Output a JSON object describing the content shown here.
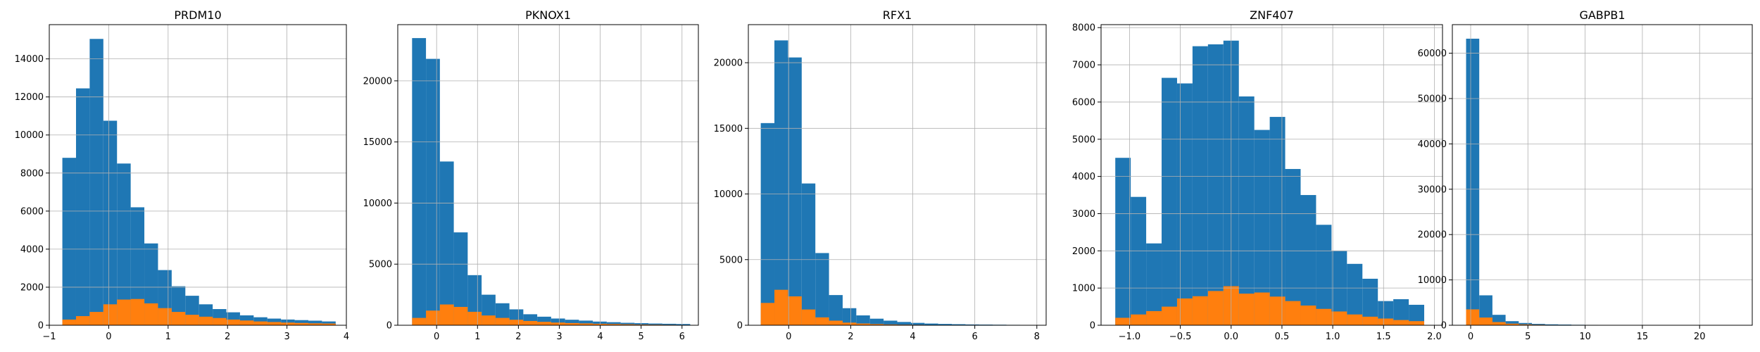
{
  "colors": {
    "series_0": "#1f77b4",
    "series_1": "#ff7f0e"
  },
  "chart_data": [
    {
      "type": "bar",
      "title": "PRDM10",
      "xlabel": "",
      "ylabel": "",
      "xlim": [
        -1.0,
        4.0
      ],
      "ylim": [
        0,
        15800
      ],
      "xticks": [
        -1,
        0,
        1,
        2,
        3,
        4
      ],
      "yticks": [
        0,
        2000,
        4000,
        6000,
        8000,
        10000,
        12000,
        14000
      ],
      "grid": true,
      "bin_edges": [
        -0.78,
        -0.55,
        -0.32,
        -0.09,
        0.14,
        0.37,
        0.6,
        0.83,
        1.06,
        1.29,
        1.52,
        1.75,
        1.98,
        2.21,
        2.44,
        2.67,
        2.9,
        3.13,
        3.36,
        3.59,
        3.82
      ],
      "series": [
        {
          "values": [
            8800,
            12450,
            15050,
            10750,
            8500,
            6200,
            4300,
            2900,
            2050,
            1550,
            1100,
            850,
            680,
            520,
            420,
            350,
            300,
            270,
            240,
            200
          ]
        },
        {
          "values": [
            300,
            480,
            700,
            1100,
            1350,
            1380,
            1150,
            900,
            700,
            550,
            450,
            380,
            300,
            250,
            200,
            170,
            140,
            120,
            100,
            90
          ]
        }
      ]
    },
    {
      "type": "bar",
      "title": "PKNOX1",
      "xlabel": "",
      "ylabel": "",
      "xlim": [
        -0.95,
        6.4
      ],
      "ylim": [
        0,
        24600
      ],
      "xticks": [
        0,
        1,
        2,
        3,
        4,
        5,
        6
      ],
      "yticks": [
        0,
        5000,
        10000,
        15000,
        20000
      ],
      "grid": true,
      "bin_edges": [
        -0.6,
        -0.26,
        0.08,
        0.42,
        0.76,
        1.1,
        1.44,
        1.78,
        2.12,
        2.46,
        2.8,
        3.14,
        3.48,
        3.82,
        4.16,
        4.5,
        4.84,
        5.18,
        5.52,
        5.86,
        6.2
      ],
      "series": [
        {
          "values": [
            23500,
            21800,
            13400,
            7600,
            4100,
            2500,
            1800,
            1300,
            900,
            700,
            550,
            450,
            380,
            300,
            250,
            200,
            170,
            140,
            120,
            100
          ]
        },
        {
          "values": [
            600,
            1200,
            1700,
            1500,
            1100,
            800,
            600,
            450,
            350,
            280,
            220,
            180,
            150,
            120,
            100,
            80,
            60,
            50,
            40,
            30
          ]
        }
      ]
    },
    {
      "type": "bar",
      "title": "RFX1",
      "xlabel": "",
      "ylabel": "",
      "xlim": [
        -1.3,
        8.3
      ],
      "ylim": [
        0,
        22900
      ],
      "xticks": [
        0,
        2,
        4,
        6,
        8
      ],
      "yticks": [
        0,
        5000,
        10000,
        15000,
        20000
      ],
      "grid": true,
      "bin_edges": [
        -0.9,
        -0.46,
        -0.02,
        0.42,
        0.86,
        1.3,
        1.74,
        2.18,
        2.62,
        3.06,
        3.5,
        3.94,
        4.38,
        4.82,
        5.26,
        5.7,
        6.14,
        6.58,
        7.02,
        7.46,
        7.9
      ],
      "series": [
        {
          "values": [
            15400,
            21700,
            20400,
            10800,
            5500,
            2300,
            1300,
            750,
            500,
            350,
            250,
            180,
            130,
            100,
            80,
            60,
            50,
            40,
            30,
            20
          ]
        },
        {
          "values": [
            1700,
            2700,
            2200,
            1200,
            600,
            350,
            200,
            130,
            90,
            60,
            45,
            35,
            25,
            20,
            15,
            10,
            8,
            6,
            5,
            4
          ]
        }
      ]
    },
    {
      "type": "bar",
      "title": "ZNF407",
      "xlabel": "",
      "ylabel": "",
      "xlim": [
        -1.28,
        2.08
      ],
      "ylim": [
        0,
        8080
      ],
      "xticks": [
        -1.0,
        -0.5,
        0.0,
        0.5,
        1.0,
        1.5,
        2.0
      ],
      "yticks": [
        0,
        1000,
        2000,
        3000,
        4000,
        5000,
        6000,
        7000,
        8000
      ],
      "grid": true,
      "bin_edges": [
        -1.14,
        -0.988,
        -0.836,
        -0.684,
        -0.532,
        -0.38,
        -0.228,
        -0.076,
        0.076,
        0.228,
        0.38,
        0.532,
        0.684,
        0.836,
        0.988,
        1.14,
        1.292,
        1.444,
        1.596,
        1.748,
        1.9
      ],
      "series": [
        {
          "values": [
            4500,
            3450,
            2200,
            6650,
            6500,
            7500,
            7550,
            7650,
            6150,
            5250,
            5600,
            4200,
            3500,
            2700,
            2000,
            1650,
            1250,
            650,
            700,
            550
          ]
        },
        {
          "values": [
            200,
            290,
            380,
            500,
            720,
            780,
            920,
            1050,
            850,
            880,
            770,
            650,
            530,
            440,
            370,
            290,
            230,
            180,
            140,
            110
          ]
        }
      ]
    },
    {
      "type": "bar",
      "title": "GABPB1",
      "xlabel": "",
      "ylabel": "",
      "xlim": [
        -1.6,
        24.6
      ],
      "ylim": [
        0,
        66300
      ],
      "xticks": [
        0,
        5,
        10,
        15,
        20
      ],
      "yticks": [
        0,
        10000,
        20000,
        30000,
        40000,
        50000,
        60000
      ],
      "grid": true,
      "bin_edges": [
        -0.4,
        0.75,
        1.9,
        3.05,
        4.2,
        5.35,
        6.5,
        7.65,
        8.8,
        9.95,
        11.1,
        12.25,
        13.4,
        14.55,
        15.7,
        16.85,
        18.0,
        19.15,
        20.3,
        21.45,
        22.6
      ],
      "series": [
        {
          "values": [
            63200,
            6600,
            2300,
            900,
            500,
            300,
            200,
            150,
            100,
            80,
            60,
            50,
            40,
            30,
            25,
            20,
            15,
            10,
            8,
            6
          ]
        },
        {
          "values": [
            3500,
            1700,
            700,
            350,
            200,
            120,
            80,
            60,
            40,
            30,
            20,
            15,
            10,
            8,
            6,
            5,
            4,
            3,
            2,
            2
          ]
        }
      ]
    }
  ]
}
